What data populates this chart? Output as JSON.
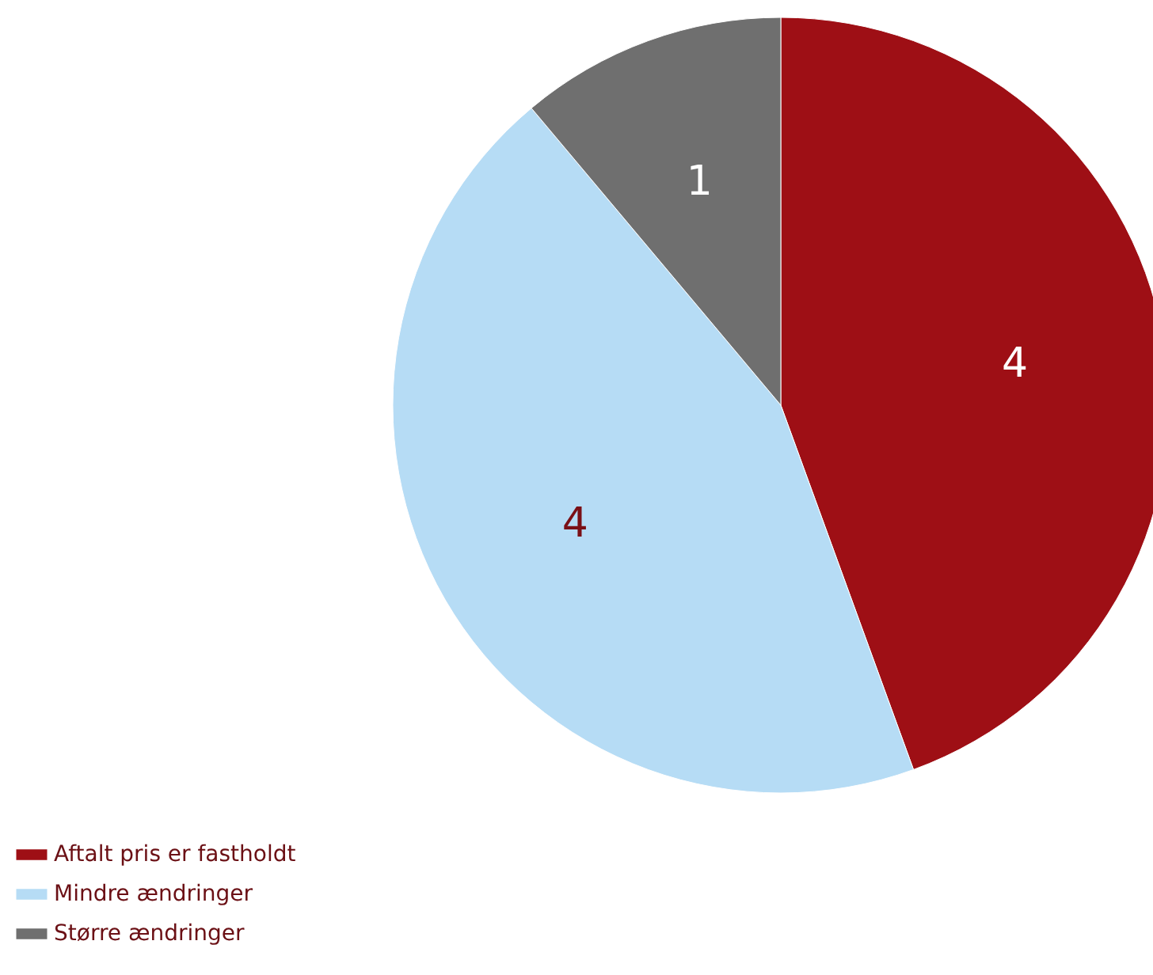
{
  "chart_data": {
    "type": "pie",
    "categories": [
      "Aftalt pris er fastholdt",
      "Mindre ændringer",
      "Større ændringer"
    ],
    "values": [
      4,
      4,
      1
    ],
    "colors": [
      "#9e0f15",
      "#b6dcf5",
      "#6f6f6f"
    ],
    "data_labels": true,
    "legend": "bottom left"
  }
}
